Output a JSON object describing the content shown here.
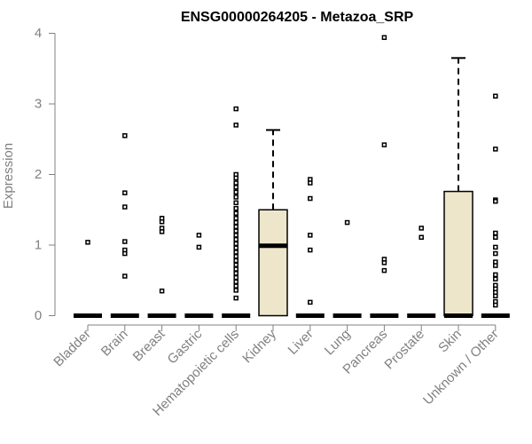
{
  "chart_data": {
    "type": "box",
    "title": "ENSG00000264205 - Metazoa_SRP",
    "xlabel": "",
    "ylabel": "Expression",
    "ylim": [
      0,
      4
    ],
    "yticks": [
      0,
      1,
      2,
      3,
      4
    ],
    "categories": [
      "Bladder",
      "Brain",
      "Breast",
      "Gastric",
      "Hematopoietic cells",
      "Kidney",
      "Liver",
      "Lung",
      "Pancreas",
      "Prostate",
      "Skin",
      "Unknown / Other"
    ],
    "box_fill": "#ede6cb",
    "boxes": [
      {
        "category": "Bladder",
        "q1": 0,
        "median": 0,
        "q3": 0,
        "whisker_low": 0,
        "whisker_high": 0,
        "outliers": [
          1.04
        ]
      },
      {
        "category": "Brain",
        "q1": 0,
        "median": 0,
        "q3": 0,
        "whisker_low": 0,
        "whisker_high": 0,
        "outliers": [
          2.55,
          1.74,
          1.54,
          1.05,
          0.93,
          0.88,
          0.56
        ]
      },
      {
        "category": "Breast",
        "q1": 0,
        "median": 0,
        "q3": 0,
        "whisker_low": 0,
        "whisker_high": 0,
        "outliers": [
          1.38,
          1.33,
          1.24,
          1.19,
          0.35
        ]
      },
      {
        "category": "Gastric",
        "q1": 0,
        "median": 0,
        "q3": 0,
        "whisker_low": 0,
        "whisker_high": 0,
        "outliers": [
          1.14,
          0.97
        ]
      },
      {
        "category": "Hematopoietic cells",
        "q1": 0,
        "median": 0,
        "q3": 0,
        "whisker_low": 0,
        "whisker_high": 0,
        "outliers": [
          2.93,
          2.7,
          2.0,
          1.95,
          1.88,
          1.82,
          1.75,
          1.68,
          1.6,
          1.52,
          1.45,
          1.38,
          1.32,
          1.26,
          1.2,
          1.14,
          1.08,
          1.02,
          0.96,
          0.9,
          0.84,
          0.78,
          0.72,
          0.66,
          0.6,
          0.54,
          0.48,
          0.42,
          0.36,
          0.25
        ]
      },
      {
        "category": "Kidney",
        "q1": 0,
        "median": 0.99,
        "q3": 1.5,
        "whisker_low": 0,
        "whisker_high": 2.63,
        "outliers": []
      },
      {
        "category": "Liver",
        "q1": 0,
        "median": 0,
        "q3": 0,
        "whisker_low": 0,
        "whisker_high": 0,
        "outliers": [
          1.93,
          1.88,
          1.66,
          1.14,
          0.93,
          0.19
        ]
      },
      {
        "category": "Lung",
        "q1": 0,
        "median": 0,
        "q3": 0,
        "whisker_low": 0,
        "whisker_high": 0,
        "outliers": [
          1.32
        ]
      },
      {
        "category": "Pancreas",
        "q1": 0,
        "median": 0,
        "q3": 0,
        "whisker_low": 0,
        "whisker_high": 0,
        "outliers": [
          3.94,
          2.42,
          0.8,
          0.75,
          0.64
        ]
      },
      {
        "category": "Prostate",
        "q1": 0,
        "median": 0,
        "q3": 0,
        "whisker_low": 0,
        "whisker_high": 0,
        "outliers": [
          1.24,
          1.11
        ]
      },
      {
        "category": "Skin",
        "q1": 0,
        "median": 0,
        "q3": 1.76,
        "whisker_low": 0,
        "whisker_high": 3.65,
        "outliers": []
      },
      {
        "category": "Unknown / Other",
        "q1": 0,
        "median": 0,
        "q3": 0,
        "whisker_low": 0,
        "whisker_high": 0,
        "outliers": [
          3.11,
          2.36,
          1.64,
          1.62,
          1.17,
          1.11,
          0.97,
          0.88,
          0.76,
          0.71,
          0.58,
          0.52,
          0.43,
          0.38,
          0.33,
          0.28,
          0.2,
          0.15
        ]
      }
    ]
  }
}
